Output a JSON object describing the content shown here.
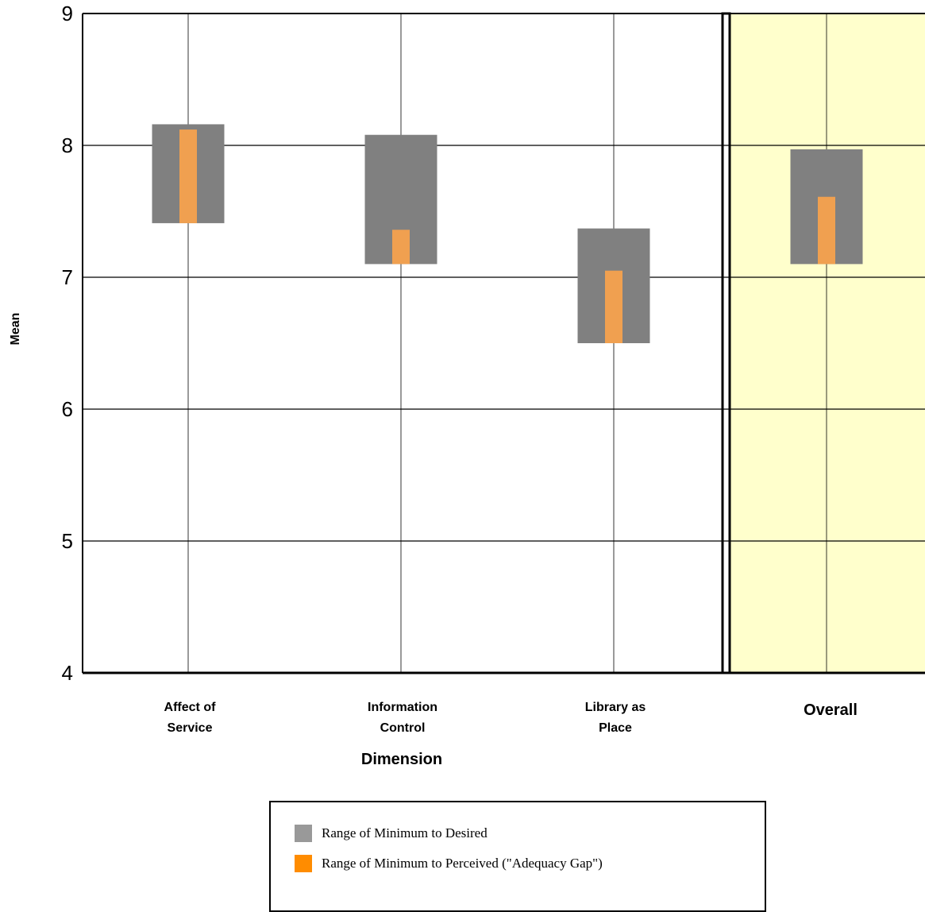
{
  "chart_data": {
    "type": "bar",
    "title": "",
    "xlabel": "Dimension",
    "ylabel": "Mean",
    "ylim": [
      4,
      9
    ],
    "yticks": [
      4,
      5,
      6,
      7,
      8,
      9
    ],
    "grid": true,
    "categories": [
      "Affect of Service",
      "Information Control",
      "Library as Place",
      "Overall"
    ],
    "category_label_lines": [
      [
        "Affect of",
        "Service"
      ],
      [
        "Information",
        "Control"
      ],
      [
        "Library as",
        "Place"
      ],
      [
        "Overall"
      ]
    ],
    "highlighted_category": "Overall",
    "series": [
      {
        "name": "Range of Minimum to Desired",
        "color": "#808080",
        "low": [
          7.41,
          7.1,
          6.5,
          7.1
        ],
        "high": [
          8.16,
          8.08,
          7.37,
          7.97
        ]
      },
      {
        "name": "Range of Minimum to Perceived (\"Adequacy Gap\")",
        "color": "#F0A050",
        "low": [
          7.41,
          7.1,
          6.5,
          7.1
        ],
        "high": [
          8.12,
          7.36,
          7.05,
          7.61
        ]
      }
    ],
    "legend": {
      "placement": "bottom",
      "entries": [
        {
          "label": "Range of Minimum to Desired",
          "color": "#999999"
        },
        {
          "label": "Range of Minimum to Perceived (\"Adequacy Gap\")",
          "color": "#FF8C00"
        }
      ]
    },
    "colors": {
      "highlight_background": "#FFFFCC",
      "grid": "#000000"
    }
  }
}
